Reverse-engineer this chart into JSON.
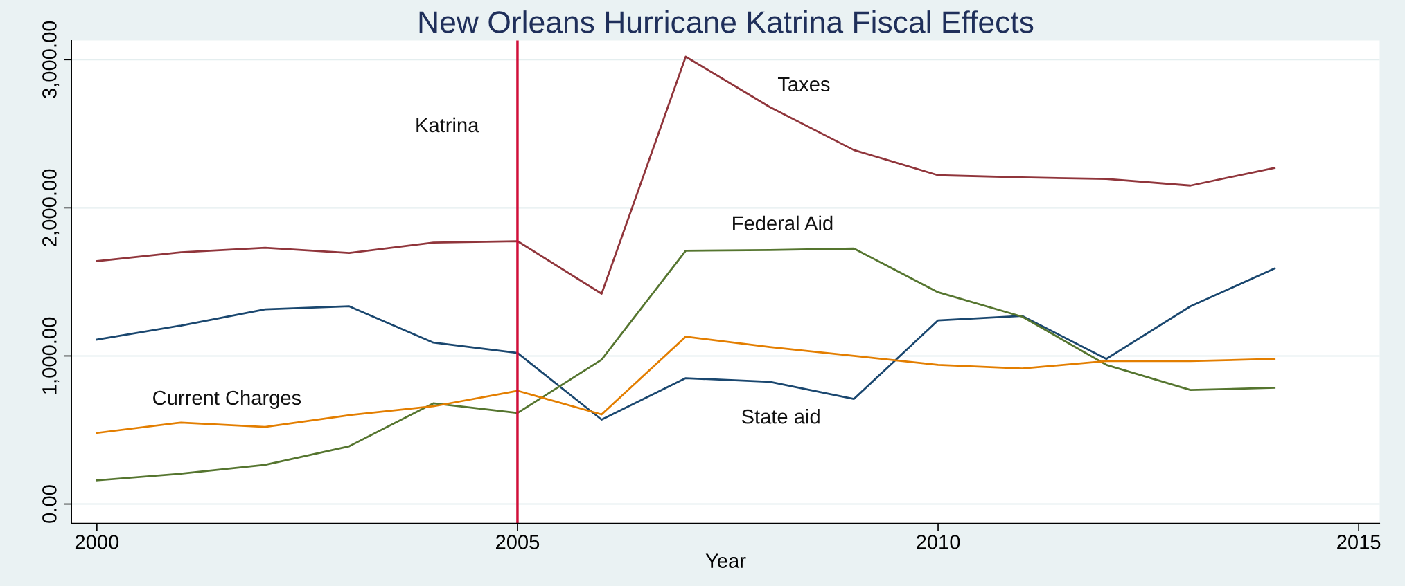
{
  "chart_data": {
    "type": "line",
    "title": "New Orleans Hurricane Katrina Fiscal Effects",
    "xlabel": "Year",
    "x": [
      2000,
      2001,
      2002,
      2003,
      2004,
      2005,
      2006,
      2007,
      2008,
      2009,
      2010,
      2011,
      2012,
      2013,
      2014
    ],
    "series": [
      {
        "name": "Taxes",
        "color": "#90353b",
        "values": [
          1640,
          1700,
          1730,
          1695,
          1765,
          1775,
          1420,
          3020,
          2680,
          2390,
          2220,
          2205,
          2195,
          2150,
          2270
        ]
      },
      {
        "name": "State aid",
        "color": "#1a476f",
        "values": [
          1110,
          1205,
          1315,
          1335,
          1090,
          1020,
          570,
          850,
          825,
          710,
          1240,
          1270,
          980,
          1335,
          1590
        ]
      },
      {
        "name": "Federal Aid",
        "color": "#55752f",
        "values": [
          160,
          205,
          265,
          390,
          680,
          615,
          975,
          1710,
          1715,
          1725,
          1430,
          1265,
          940,
          770,
          785
        ]
      },
      {
        "name": "Current Charges",
        "color": "#e37e00",
        "values": [
          480,
          550,
          520,
          600,
          660,
          765,
          605,
          1130,
          1060,
          1000,
          940,
          915,
          965,
          965,
          980
        ]
      }
    ],
    "xlim": [
      1999.7,
      2015.25
    ],
    "xticks": [
      2000,
      2005,
      2010,
      2015
    ],
    "ylim": [
      -130,
      3130
    ],
    "yticks": [
      {
        "value": 0,
        "label": "0.00"
      },
      {
        "value": 1000,
        "label": "1,000.00"
      },
      {
        "value": 2000,
        "label": "2,000.00"
      },
      {
        "value": 3000,
        "label": "3,000.00"
      }
    ],
    "ref_lines": [
      {
        "axis": "x",
        "value": 2005,
        "label": "Katrina",
        "color": "#d0103a"
      }
    ],
    "grid": "y",
    "legend": false,
    "marker": "none",
    "line_style": "solid"
  }
}
